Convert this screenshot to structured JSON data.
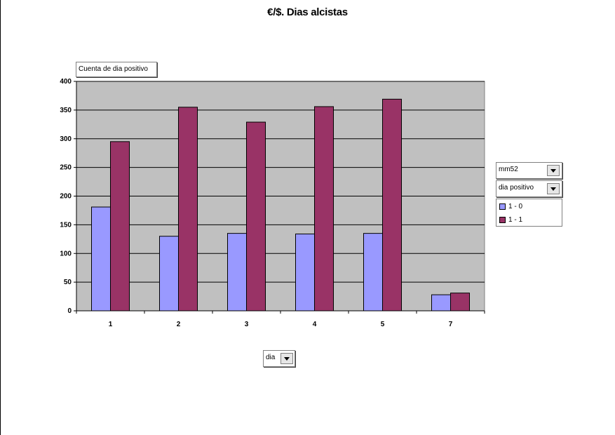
{
  "window": {
    "title": "€/$. Dias alcistas"
  },
  "fields": {
    "data_field": "Cuenta de dia positivo",
    "page_field_1": "mm52",
    "series_field": "dia positivo",
    "category_field": "dia"
  },
  "legend": {
    "items": [
      {
        "label": "1 - 0",
        "color": "#9999ff"
      },
      {
        "label": "1 - 1",
        "color": "#993366"
      }
    ]
  },
  "colors": {
    "plot_bg": "#c0c0c0",
    "grid": "#000000"
  },
  "chart_data": {
    "type": "bar",
    "title": "€/$. Dias alcistas",
    "categories": [
      "1",
      "2",
      "3",
      "4",
      "5",
      "7"
    ],
    "series": [
      {
        "name": "1 - 0",
        "values": [
          181,
          130,
          135,
          134,
          135,
          28
        ]
      },
      {
        "name": "1 - 1",
        "values": [
          295,
          355,
          329,
          356,
          369,
          31
        ]
      }
    ],
    "xlabel": "",
    "ylabel": "",
    "ylim": [
      0,
      400
    ],
    "yticks": [
      0,
      50,
      100,
      150,
      200,
      250,
      300,
      350,
      400
    ],
    "grid": true,
    "legend_position": "right"
  }
}
